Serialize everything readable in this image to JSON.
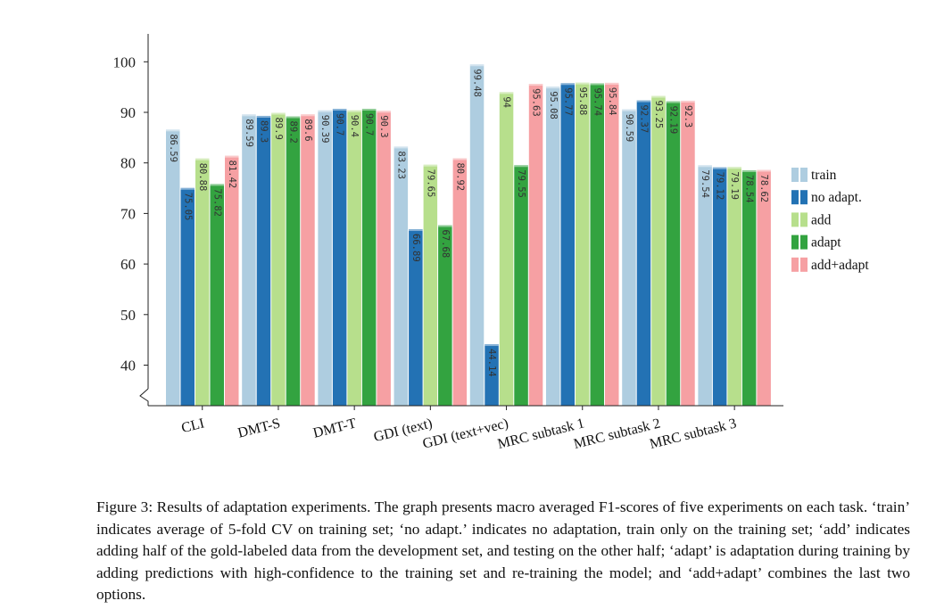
{
  "chart_data": {
    "type": "bar",
    "title": "",
    "xlabel": "",
    "ylabel": "",
    "ylim": [
      32,
      104
    ],
    "yticks": [
      40,
      50,
      60,
      70,
      80,
      90,
      100
    ],
    "yticks_text": [
      "40",
      "50",
      "60",
      "70",
      "80",
      "90",
      "100"
    ],
    "legend_position": "right",
    "categories": [
      "CLI",
      "DMT-S",
      "DMT-T",
      "GDI (text)",
      "GDI (text+vec)",
      "MRC subtask 1",
      "MRC subtask 2",
      "MRC subtask 3"
    ],
    "series": [
      {
        "name": "train",
        "color": "#aecde0",
        "values": [
          86.59,
          89.59,
          90.39,
          83.23,
          99.48,
          95.08,
          90.59,
          79.54
        ],
        "labels": [
          "86.59",
          "89.59",
          "90.39",
          "83.23",
          "99.48",
          "95.08",
          "90.59",
          "79.54"
        ]
      },
      {
        "name": "no adapt.",
        "color": "#2372b4",
        "values": [
          75.05,
          89.3,
          90.7,
          66.89,
          44.14,
          95.77,
          92.37,
          79.12
        ],
        "labels": [
          "75.05",
          "89.3",
          "90.7",
          "66.89",
          "44.14",
          "95.77",
          "92.37",
          "79.12"
        ]
      },
      {
        "name": "add",
        "color": "#b7df8c",
        "values": [
          80.88,
          89.9,
          90.4,
          79.65,
          94,
          95.88,
          93.25,
          79.19
        ],
        "labels": [
          "80.88",
          "89.9",
          "90.4",
          "79.65",
          "94",
          "95.88",
          "93.25",
          "79.19"
        ]
      },
      {
        "name": "adapt",
        "color": "#33a340",
        "values": [
          75.82,
          89.2,
          90.7,
          67.68,
          79.55,
          95.74,
          92.19,
          78.54
        ],
        "labels": [
          "75.82",
          "89.2",
          "90.7",
          "67.68",
          "79.55",
          "95.74",
          "92.19",
          "78.54"
        ]
      },
      {
        "name": "add+adapt",
        "color": "#f6a0a3",
        "values": [
          81.42,
          89.6,
          90.3,
          80.92,
          95.63,
          95.84,
          92.3,
          78.62
        ],
        "labels": [
          "81.42",
          "89.6",
          "90.3",
          "80.92",
          "95.63",
          "95.84",
          "92.3",
          "78.62"
        ]
      }
    ]
  },
  "caption": {
    "text": "Figure 3: Results of adaptation experiments. The graph presents macro averaged F1-scores of five experiments on each task. ‘train’ indicates average of 5-fold CV on training set; ‘no adapt.’ indicates no adaptation, train only on the training set; ‘add’ indicates adding half of the gold-labeled data from the development set, and testing on the other half; ‘adapt’ is adaptation during training by adding predictions with high-confidence to the training set and re-training the model; and ‘add+adapt’ combines the last two options."
  }
}
